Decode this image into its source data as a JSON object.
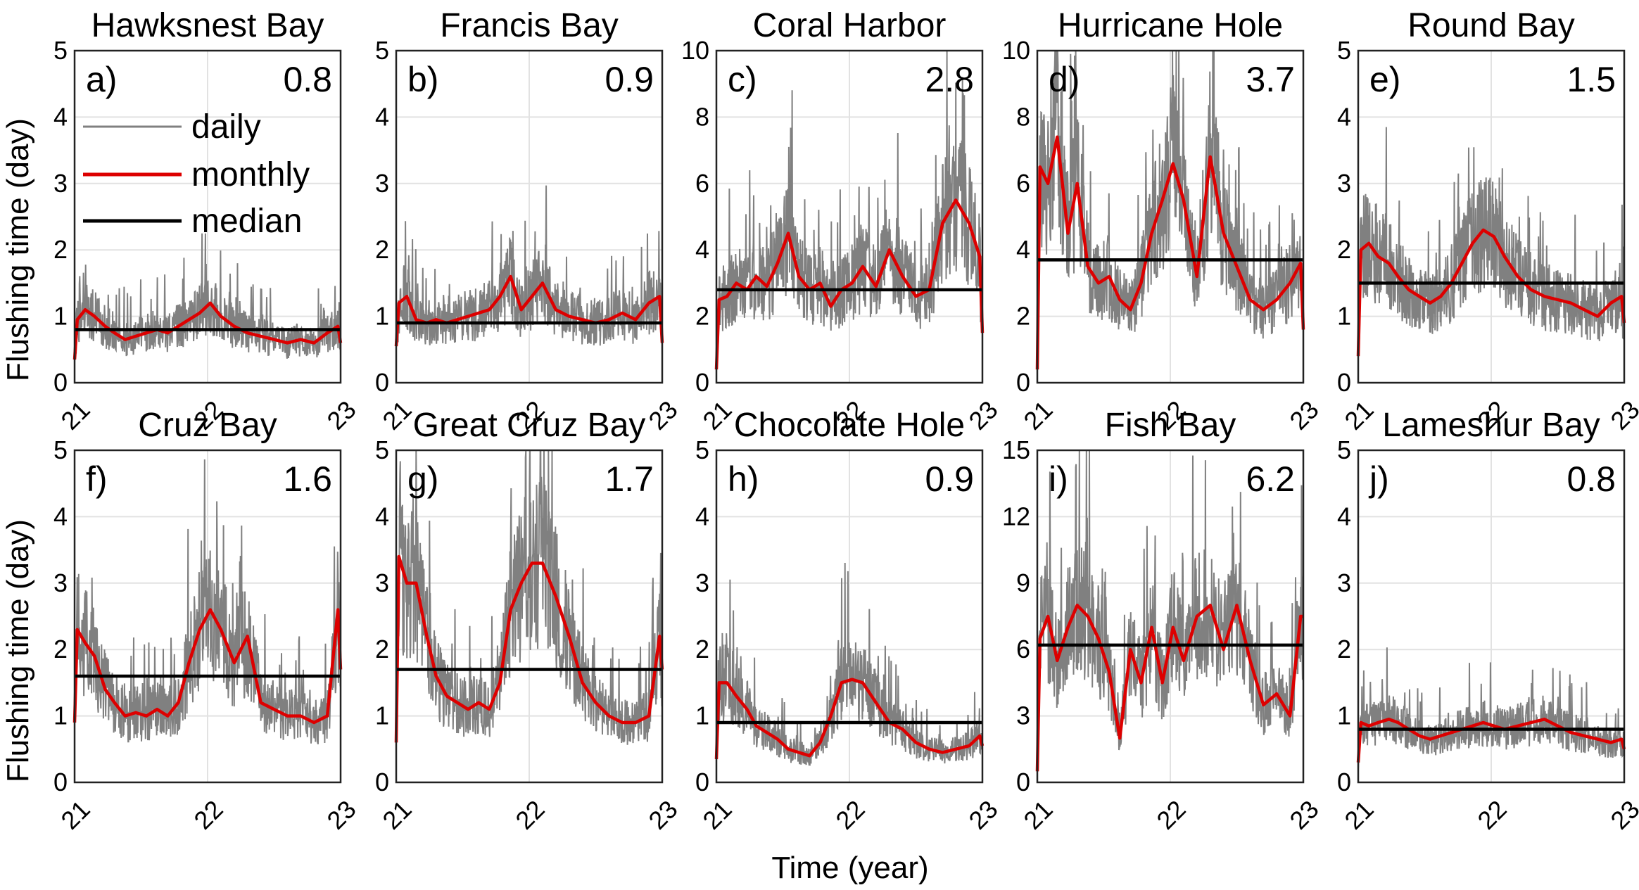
{
  "figure": {
    "ylabel": "Flushing time (day)",
    "xlabel": "Time (year)"
  },
  "legend": {
    "entries": [
      {
        "label": "daily",
        "color": "#808080"
      },
      {
        "label": "monthly",
        "color": "#dd0000"
      },
      {
        "label": "median",
        "color": "#000000"
      }
    ]
  },
  "colors": {
    "daily": "#808080",
    "monthly": "#dd0000",
    "median": "#000000"
  },
  "chart_data": [
    {
      "type": "line",
      "title": "Hawksnest Bay",
      "letter": "a)",
      "median": 0.8,
      "median_label": "0.8",
      "ylim": [
        0,
        5
      ],
      "yticks": [
        0,
        1,
        2,
        3,
        4,
        5
      ],
      "xlim": [
        21,
        23
      ],
      "xticks": [
        21,
        22,
        23
      ],
      "xlabel": "",
      "ylabel": "Flushing time (day)",
      "monthly_x": [
        21.0,
        21.02,
        21.08,
        21.15,
        21.23,
        21.3,
        21.38,
        21.46,
        21.54,
        21.62,
        21.7,
        21.78,
        21.86,
        21.94,
        22.02,
        22.1,
        22.2,
        22.3,
        22.4,
        22.5,
        22.6,
        22.7,
        22.8,
        22.9,
        22.98,
        23.0
      ],
      "monthly_y": [
        0.35,
        0.95,
        1.1,
        1.0,
        0.85,
        0.75,
        0.65,
        0.7,
        0.75,
        0.8,
        0.75,
        0.85,
        0.95,
        1.05,
        1.2,
        1.0,
        0.85,
        0.75,
        0.7,
        0.65,
        0.6,
        0.65,
        0.6,
        0.75,
        0.85,
        0.6
      ]
    },
    {
      "type": "line",
      "title": "Francis Bay",
      "letter": "b)",
      "median": 0.9,
      "median_label": "0.9",
      "ylim": [
        0,
        5
      ],
      "yticks": [
        0,
        1,
        2,
        3,
        4,
        5
      ],
      "xlim": [
        21,
        23
      ],
      "xticks": [
        21,
        22,
        23
      ],
      "xlabel": "",
      "ylabel": "",
      "monthly_x": [
        21.0,
        21.02,
        21.08,
        21.15,
        21.23,
        21.3,
        21.38,
        21.46,
        21.54,
        21.62,
        21.7,
        21.78,
        21.86,
        21.94,
        22.02,
        22.1,
        22.2,
        22.3,
        22.4,
        22.5,
        22.6,
        22.7,
        22.8,
        22.9,
        22.98,
        23.0
      ],
      "monthly_y": [
        0.55,
        1.2,
        1.3,
        0.95,
        0.9,
        0.95,
        0.9,
        0.95,
        1.0,
        1.05,
        1.1,
        1.3,
        1.6,
        1.1,
        1.3,
        1.5,
        1.1,
        1.0,
        0.95,
        0.9,
        0.95,
        1.05,
        0.95,
        1.2,
        1.3,
        0.6
      ]
    },
    {
      "type": "line",
      "title": "Coral Harbor",
      "letter": "c)",
      "median": 2.8,
      "median_label": "2.8",
      "ylim": [
        0,
        10
      ],
      "yticks": [
        0,
        2,
        4,
        6,
        8,
        10
      ],
      "xlim": [
        21,
        23
      ],
      "xticks": [
        21,
        22,
        23
      ],
      "xlabel": "",
      "ylabel": "",
      "monthly_x": [
        21.0,
        21.02,
        21.08,
        21.15,
        21.23,
        21.3,
        21.38,
        21.46,
        21.54,
        21.62,
        21.7,
        21.78,
        21.86,
        21.94,
        22.02,
        22.1,
        22.2,
        22.3,
        22.4,
        22.5,
        22.6,
        22.7,
        22.8,
        22.9,
        22.98,
        23.0
      ],
      "monthly_y": [
        0.4,
        2.5,
        2.6,
        3.0,
        2.8,
        3.2,
        2.9,
        3.6,
        4.5,
        3.2,
        2.8,
        3.0,
        2.3,
        2.8,
        3.0,
        3.5,
        2.9,
        4.0,
        3.2,
        2.6,
        2.8,
        4.8,
        5.5,
        4.8,
        3.8,
        1.5
      ]
    },
    {
      "type": "line",
      "title": "Hurricane Hole",
      "letter": "d)",
      "median": 3.7,
      "median_label": "3.7",
      "ylim": [
        0,
        10
      ],
      "yticks": [
        0,
        2,
        4,
        6,
        8,
        10
      ],
      "xlim": [
        21,
        23
      ],
      "xticks": [
        21,
        22,
        23
      ],
      "xlabel": "",
      "ylabel": "",
      "monthly_x": [
        21.0,
        21.02,
        21.08,
        21.15,
        21.23,
        21.3,
        21.38,
        21.46,
        21.54,
        21.62,
        21.7,
        21.78,
        21.86,
        21.94,
        22.02,
        22.1,
        22.2,
        22.3,
        22.4,
        22.5,
        22.6,
        22.7,
        22.8,
        22.9,
        22.98,
        23.0
      ],
      "monthly_y": [
        0.4,
        6.5,
        6.0,
        7.4,
        4.5,
        6.0,
        3.5,
        3.0,
        3.2,
        2.5,
        2.2,
        3.0,
        4.5,
        5.5,
        6.6,
        5.5,
        3.2,
        6.8,
        4.5,
        3.5,
        2.5,
        2.2,
        2.5,
        3.0,
        3.6,
        1.6
      ]
    },
    {
      "type": "line",
      "title": "Round Bay",
      "letter": "e)",
      "median": 1.5,
      "median_label": "1.5",
      "ylim": [
        0,
        5
      ],
      "yticks": [
        0,
        1,
        2,
        3,
        4,
        5
      ],
      "xlim": [
        21,
        23
      ],
      "xticks": [
        21,
        22,
        23
      ],
      "xlabel": "",
      "ylabel": "",
      "monthly_x": [
        21.0,
        21.02,
        21.08,
        21.15,
        21.23,
        21.3,
        21.38,
        21.46,
        21.54,
        21.62,
        21.7,
        21.78,
        21.86,
        21.94,
        22.02,
        22.1,
        22.2,
        22.3,
        22.4,
        22.5,
        22.6,
        22.7,
        22.8,
        22.9,
        22.98,
        23.0
      ],
      "monthly_y": [
        0.4,
        2.0,
        2.1,
        1.9,
        1.8,
        1.6,
        1.4,
        1.3,
        1.2,
        1.3,
        1.5,
        1.8,
        2.1,
        2.3,
        2.2,
        1.9,
        1.6,
        1.4,
        1.3,
        1.25,
        1.2,
        1.1,
        1.0,
        1.2,
        1.3,
        0.9
      ]
    },
    {
      "type": "line",
      "title": "Cruz Bay",
      "letter": "f)",
      "median": 1.6,
      "median_label": "1.6",
      "ylim": [
        0,
        5
      ],
      "yticks": [
        0,
        1,
        2,
        3,
        4,
        5
      ],
      "xlim": [
        21,
        23
      ],
      "xticks": [
        21,
        22,
        23
      ],
      "xlabel": "Time (year)",
      "ylabel": "Flushing time (day)",
      "monthly_x": [
        21.0,
        21.02,
        21.08,
        21.15,
        21.23,
        21.3,
        21.38,
        21.46,
        21.54,
        21.62,
        21.7,
        21.78,
        21.86,
        21.94,
        22.02,
        22.1,
        22.2,
        22.3,
        22.4,
        22.5,
        22.6,
        22.7,
        22.8,
        22.9,
        22.98,
        23.0
      ],
      "monthly_y": [
        0.9,
        2.3,
        2.1,
        1.9,
        1.4,
        1.2,
        1.0,
        1.05,
        1.0,
        1.1,
        1.0,
        1.2,
        1.8,
        2.3,
        2.6,
        2.3,
        1.8,
        2.2,
        1.2,
        1.1,
        1.0,
        1.0,
        0.9,
        1.0,
        2.6,
        1.7
      ]
    },
    {
      "type": "line",
      "title": "Great Cruz Bay",
      "letter": "g)",
      "median": 1.7,
      "median_label": "1.7",
      "ylim": [
        0,
        5
      ],
      "yticks": [
        0,
        1,
        2,
        3,
        4,
        5
      ],
      "xlim": [
        21,
        23
      ],
      "xticks": [
        21,
        22,
        23
      ],
      "xlabel": "",
      "ylabel": "",
      "monthly_x": [
        21.0,
        21.02,
        21.08,
        21.15,
        21.23,
        21.3,
        21.38,
        21.46,
        21.54,
        21.62,
        21.7,
        21.78,
        21.86,
        21.94,
        22.02,
        22.1,
        22.2,
        22.3,
        22.4,
        22.5,
        22.6,
        22.7,
        22.8,
        22.9,
        22.98,
        23.0
      ],
      "monthly_y": [
        0.6,
        3.4,
        3.0,
        3.0,
        2.2,
        1.6,
        1.3,
        1.2,
        1.1,
        1.2,
        1.1,
        1.5,
        2.6,
        3.0,
        3.3,
        3.3,
        2.8,
        2.2,
        1.5,
        1.2,
        1.0,
        0.9,
        0.9,
        1.0,
        2.2,
        1.7
      ]
    },
    {
      "type": "line",
      "title": "Chocolate Hole",
      "letter": "h)",
      "median": 0.9,
      "median_label": "0.9",
      "ylim": [
        0,
        5
      ],
      "yticks": [
        0,
        1,
        2,
        3,
        4,
        5
      ],
      "xlim": [
        21,
        23
      ],
      "xticks": [
        21,
        22,
        23
      ],
      "xlabel": "",
      "ylabel": "",
      "monthly_x": [
        21.0,
        21.02,
        21.08,
        21.15,
        21.23,
        21.3,
        21.38,
        21.46,
        21.54,
        21.62,
        21.7,
        21.78,
        21.86,
        21.94,
        22.02,
        22.1,
        22.2,
        22.3,
        22.4,
        22.5,
        22.6,
        22.7,
        22.8,
        22.9,
        22.98,
        23.0
      ],
      "monthly_y": [
        0.35,
        1.5,
        1.5,
        1.3,
        1.1,
        0.85,
        0.75,
        0.65,
        0.5,
        0.45,
        0.4,
        0.6,
        1.0,
        1.5,
        1.55,
        1.5,
        1.2,
        0.9,
        0.8,
        0.6,
        0.5,
        0.45,
        0.5,
        0.55,
        0.7,
        0.55
      ]
    },
    {
      "type": "line",
      "title": "Fish Bay",
      "letter": "i)",
      "median": 6.2,
      "median_label": "6.2",
      "ylim": [
        0,
        15
      ],
      "yticks": [
        0,
        3,
        6,
        9,
        12,
        15
      ],
      "xlim": [
        21,
        23
      ],
      "xticks": [
        21,
        22,
        23
      ],
      "xlabel": "",
      "ylabel": "",
      "monthly_x": [
        21.0,
        21.02,
        21.08,
        21.15,
        21.23,
        21.3,
        21.38,
        21.46,
        21.54,
        21.62,
        21.7,
        21.78,
        21.86,
        21.94,
        22.02,
        22.1,
        22.2,
        22.3,
        22.4,
        22.5,
        22.6,
        22.7,
        22.8,
        22.9,
        22.98,
        23.0
      ],
      "monthly_y": [
        0.5,
        6.5,
        7.5,
        5.5,
        7.0,
        8.0,
        7.5,
        6.5,
        5.0,
        2.0,
        6.0,
        4.5,
        7.0,
        4.5,
        7.0,
        5.5,
        7.5,
        8.0,
        6.0,
        8.0,
        5.5,
        3.5,
        4.0,
        3.0,
        7.5,
        7.5
      ]
    },
    {
      "type": "line",
      "title": "Lameshur Bay",
      "letter": "j)",
      "median": 0.8,
      "median_label": "0.8",
      "ylim": [
        0,
        5
      ],
      "yticks": [
        0,
        1,
        2,
        3,
        4,
        5
      ],
      "xlim": [
        21,
        23
      ],
      "xticks": [
        21,
        22,
        23
      ],
      "xlabel": "",
      "ylabel": "",
      "monthly_x": [
        21.0,
        21.02,
        21.08,
        21.15,
        21.23,
        21.3,
        21.38,
        21.46,
        21.54,
        21.62,
        21.7,
        21.78,
        21.86,
        21.94,
        22.02,
        22.1,
        22.2,
        22.3,
        22.4,
        22.5,
        22.6,
        22.7,
        22.8,
        22.9,
        22.98,
        23.0
      ],
      "monthly_y": [
        0.3,
        0.9,
        0.85,
        0.9,
        0.95,
        0.9,
        0.8,
        0.7,
        0.65,
        0.7,
        0.75,
        0.8,
        0.85,
        0.9,
        0.85,
        0.8,
        0.85,
        0.9,
        0.95,
        0.85,
        0.75,
        0.7,
        0.65,
        0.6,
        0.65,
        0.5
      ]
    }
  ]
}
